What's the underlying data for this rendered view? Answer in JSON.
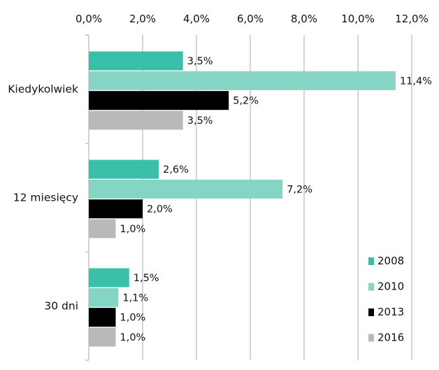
{
  "chart_data": {
    "type": "bar",
    "orientation": "horizontal",
    "title": "",
    "xlabel": "",
    "ylabel": "",
    "xlim": [
      0,
      12
    ],
    "x_ticks": [
      "0,0%",
      "2,0%",
      "4,0%",
      "6,0%",
      "8,0%",
      "10,0%",
      "12,0%"
    ],
    "x_axis_position": "top",
    "grid": "vertical",
    "legend_position": "bottom-right",
    "categories": [
      "Kiedykolwiek",
      "12 miesięcy",
      "30 dni"
    ],
    "series": [
      {
        "name": "2008",
        "color": "#3abfaa",
        "values": [
          3.5,
          2.6,
          1.5
        ],
        "labels": [
          "3,5%",
          "2,6%",
          "1,5%"
        ]
      },
      {
        "name": "2010",
        "color": "#86d4c3",
        "values": [
          11.4,
          7.2,
          1.1
        ],
        "labels": [
          "11,4%",
          "7,2%",
          "1,1%"
        ]
      },
      {
        "name": "2013",
        "color": "#000000",
        "values": [
          5.2,
          2.0,
          1.0
        ],
        "labels": [
          "5,2%",
          "2,0%",
          "1,0%"
        ]
      },
      {
        "name": "2016",
        "color": "#b9b9b9",
        "values": [
          3.5,
          1.0,
          1.0
        ],
        "labels": [
          "3,5%",
          "1,0%",
          "1,0%"
        ]
      }
    ]
  }
}
